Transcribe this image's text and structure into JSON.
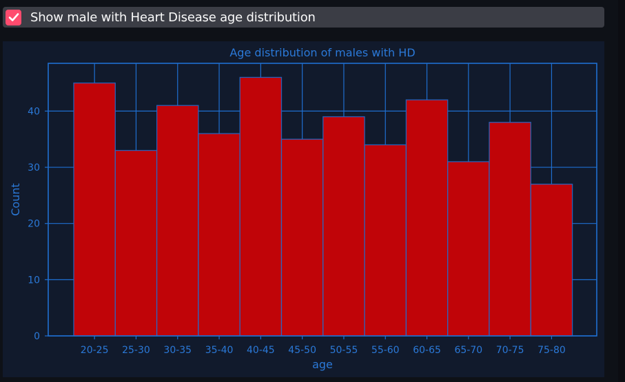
{
  "checkbox": {
    "label": "Show male with Heart Disease age distribution",
    "checked": true,
    "icon": "checkmark-icon",
    "accent_color": "#ff4b6e"
  },
  "chart_data": {
    "type": "bar",
    "title": "Age distribution of males with HD",
    "xlabel": "age",
    "ylabel": "Count",
    "categories": [
      "20-25",
      "25-30",
      "30-35",
      "35-40",
      "40-45",
      "45-50",
      "50-55",
      "55-60",
      "60-65",
      "65-70",
      "70-75",
      "75-80"
    ],
    "values": [
      45,
      33,
      41,
      36,
      46,
      35,
      39,
      34,
      42,
      31,
      38,
      27
    ],
    "yticks": [
      0,
      10,
      20,
      30,
      40
    ],
    "ylim": [
      0,
      48.5
    ],
    "grid": true,
    "bar_color": "#c00408",
    "edge_color": "#1f6fd1",
    "text_color": "#2b79d8",
    "background_color": "#111a2c"
  }
}
